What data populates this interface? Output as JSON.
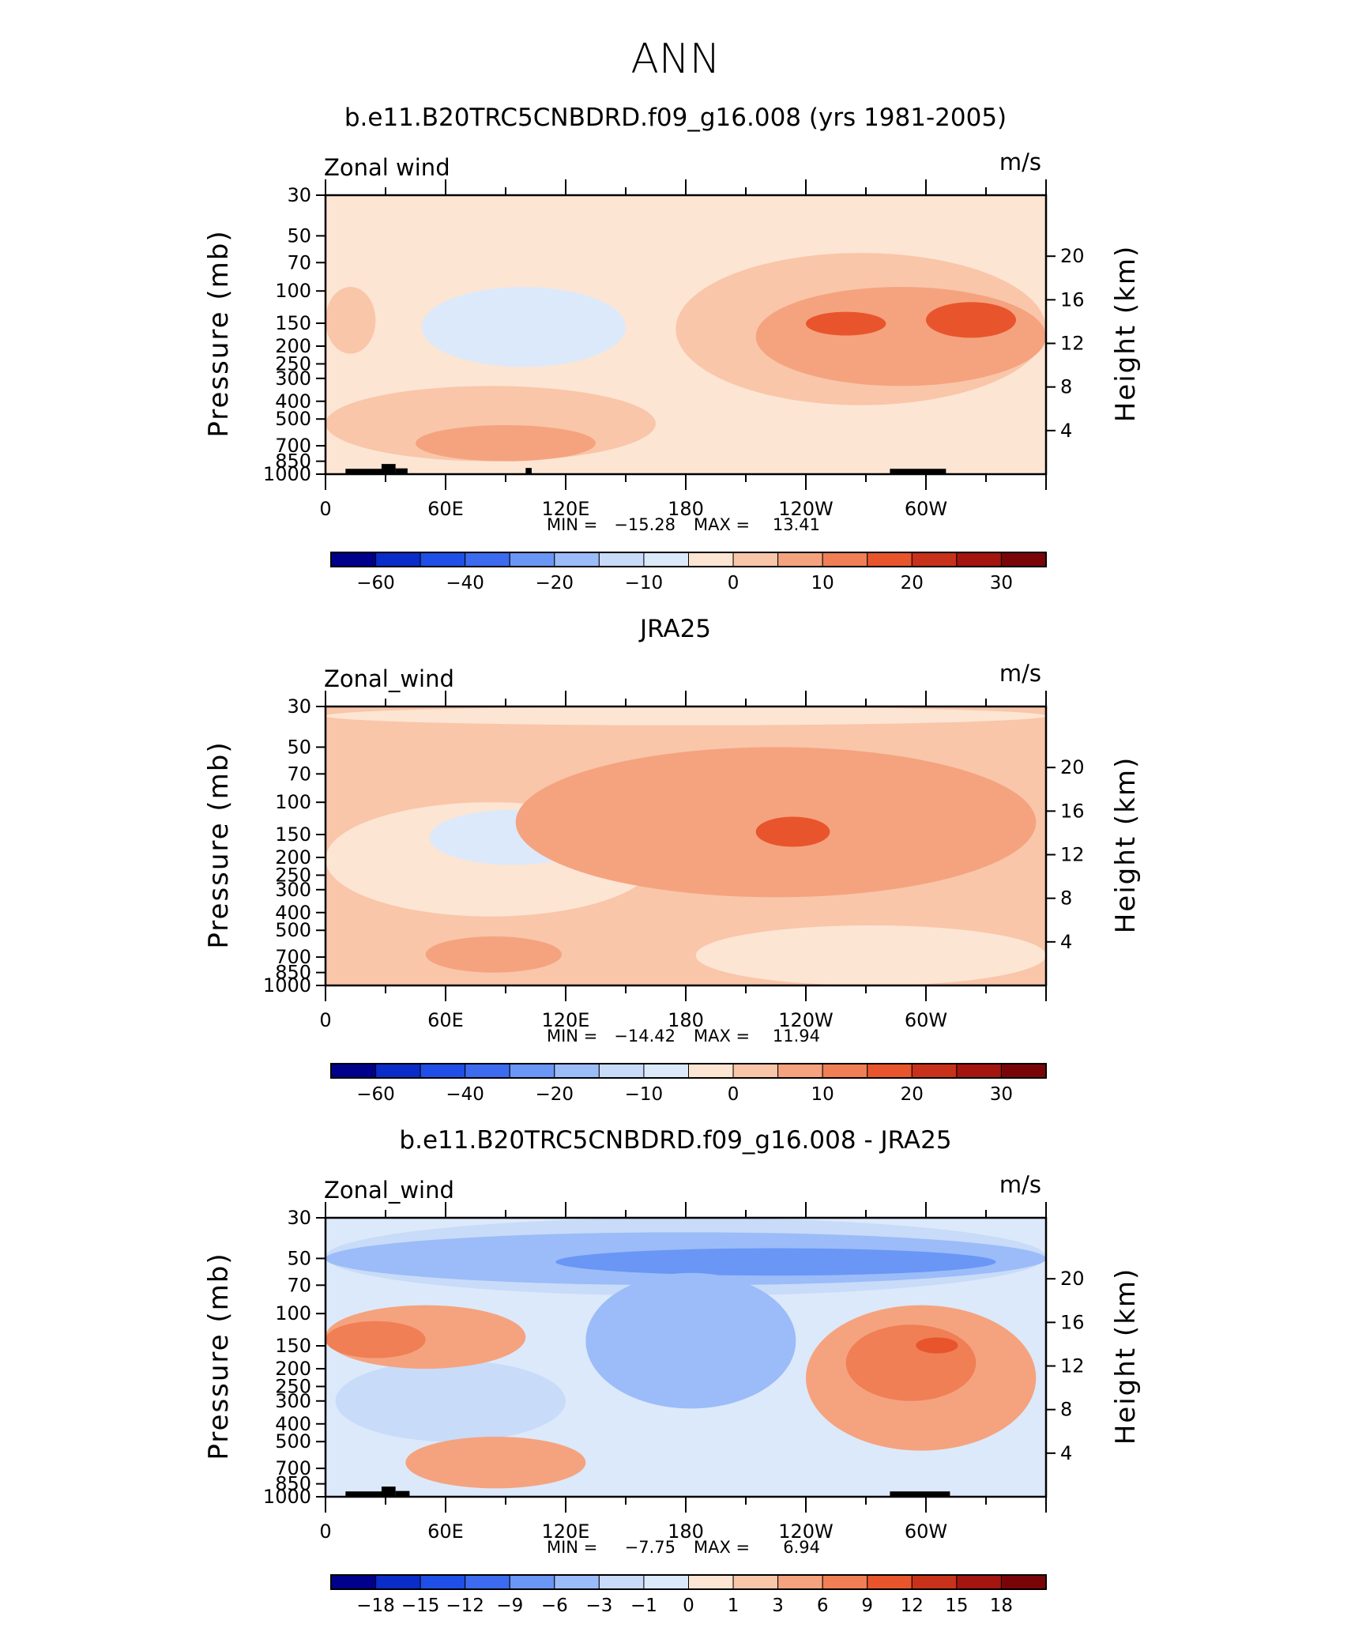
{
  "figure": {
    "title": "ANN"
  },
  "colors": {
    "scale": [
      "#00008b",
      "#0a2cc8",
      "#1f4fe6",
      "#3c6bf0",
      "#6a96f5",
      "#9bbcf8",
      "#c8dbf8",
      "#dce9fa",
      "#fde5d3",
      "#f9c6aa",
      "#f5a37f",
      "#f07f55",
      "#e8552c",
      "#c8321a",
      "#a3150e",
      "#7a0508"
    ]
  },
  "chart_data": [
    {
      "type": "heatmap",
      "title": "b.e11.B20TRC5CNBDRD.f09_g16.008 (yrs 1981-2005)",
      "variable": "Zonal wind",
      "units": "m/s",
      "xlabel": "",
      "ylabel": "Pressure (mb)",
      "ylabel_right": "Height (km)",
      "xlim": [
        0,
        360
      ],
      "x_ticks": [
        "0",
        "60E",
        "120E",
        "180",
        "120W",
        "60W"
      ],
      "x_tick_values": [
        0,
        60,
        120,
        180,
        240,
        300
      ],
      "y_ticks": [
        "30",
        "50",
        "70",
        "100",
        "150",
        "200",
        "250",
        "300",
        "400",
        "500",
        "700",
        "850",
        "1000"
      ],
      "y_tick_values": [
        30,
        50,
        70,
        100,
        150,
        200,
        250,
        300,
        400,
        500,
        700,
        850,
        1000
      ],
      "ylim": [
        1000,
        30
      ],
      "height_ticks": [
        "4",
        "8",
        "12",
        "16",
        "20"
      ],
      "height_tick_values": [
        4,
        8,
        12,
        16,
        20
      ],
      "min_label": "MIN =",
      "min_value": "−15.28",
      "max_label": "MAX =",
      "max_value": "13.41",
      "colorbar_labels": [
        "−60",
        "−40",
        "−20",
        "−10",
        "0",
        "10",
        "20",
        "30"
      ],
      "colorbar_label_boxes": [
        1,
        3,
        5,
        7,
        9,
        11,
        13,
        15
      ],
      "background_value": -3,
      "features": [
        {
          "name": "blue-150",
          "value": -9,
          "lon": [
            48,
            150
          ],
          "p": [
            95,
            260
          ]
        },
        {
          "name": "orange-100",
          "value": 3,
          "lon": [
            0,
            25
          ],
          "p": [
            95,
            220
          ]
        },
        {
          "name": "orange-100b",
          "value": 3,
          "lon": [
            175,
            360
          ],
          "p": [
            62,
            420
          ]
        },
        {
          "name": "orange-lower",
          "value": 3,
          "lon": [
            0,
            165
          ],
          "p": [
            330,
            850
          ]
        },
        {
          "name": "orange-low-small",
          "value": 6,
          "lon": [
            45,
            135
          ],
          "p": [
            540,
            850
          ]
        },
        {
          "name": "jet-1",
          "value": 9,
          "lon": [
            215,
            360
          ],
          "p": [
            95,
            330
          ]
        },
        {
          "name": "jet-1b",
          "value": 15,
          "lon": [
            240,
            280
          ],
          "p": [
            130,
            175
          ]
        },
        {
          "name": "jet-1c",
          "value": 15,
          "lon": [
            300,
            345
          ],
          "p": [
            115,
            180
          ]
        }
      ],
      "topography": [
        {
          "lon": [
            10,
            30
          ],
          "p_top": 935
        },
        {
          "lon": [
            28,
            35
          ],
          "p_top": 880
        },
        {
          "lon": [
            35,
            41
          ],
          "p_top": 930
        },
        {
          "lon": [
            100,
            103
          ],
          "p_top": 925
        },
        {
          "lon": [
            282,
            310
          ],
          "p_top": 935
        }
      ]
    },
    {
      "type": "heatmap",
      "title": "JRA25",
      "variable": "Zonal_wind",
      "units": "m/s",
      "xlabel": "",
      "ylabel": "Pressure (mb)",
      "ylabel_right": "Height (km)",
      "xlim": [
        0,
        360
      ],
      "x_ticks": [
        "0",
        "60E",
        "120E",
        "180",
        "120W",
        "60W"
      ],
      "x_tick_values": [
        0,
        60,
        120,
        180,
        240,
        300
      ],
      "y_ticks": [
        "30",
        "50",
        "70",
        "100",
        "150",
        "200",
        "250",
        "300",
        "400",
        "500",
        "700",
        "850",
        "1000"
      ],
      "y_tick_values": [
        30,
        50,
        70,
        100,
        150,
        200,
        250,
        300,
        400,
        500,
        700,
        850,
        1000
      ],
      "ylim": [
        1000,
        30
      ],
      "height_ticks": [
        "4",
        "8",
        "12",
        "16",
        "20"
      ],
      "height_tick_values": [
        4,
        8,
        12,
        16,
        20
      ],
      "min_label": "MIN =",
      "min_value": "−14.42",
      "max_label": "MAX =",
      "max_value": "11.94",
      "colorbar_labels": [
        "−60",
        "−40",
        "−20",
        "−10",
        "0",
        "10",
        "20",
        "30"
      ],
      "colorbar_label_boxes": [
        1,
        3,
        5,
        7,
        9,
        11,
        13,
        15
      ],
      "background_value": 3,
      "features": [
        {
          "name": "blue-top",
          "value": -3,
          "lon": [
            0,
            360
          ],
          "p": [
            30,
            38
          ]
        },
        {
          "name": "blue-mid-west",
          "value": -3,
          "lon": [
            0,
            165
          ],
          "p": [
            100,
            420
          ]
        },
        {
          "name": "blue-150",
          "value": -9,
          "lon": [
            52,
            135
          ],
          "p": [
            110,
            220
          ]
        },
        {
          "name": "blue-low-east",
          "value": -3,
          "lon": [
            185,
            360
          ],
          "p": [
            470,
            1000
          ]
        },
        {
          "name": "orange-jet",
          "value": 6,
          "lon": [
            95,
            355
          ],
          "p": [
            50,
            330
          ]
        },
        {
          "name": "jet-a",
          "value": 9,
          "lon": [
            195,
            275
          ],
          "p": [
            90,
            240
          ]
        },
        {
          "name": "jet-a-core",
          "value": 15,
          "lon": [
            215,
            252
          ],
          "p": [
            120,
            175
          ]
        },
        {
          "name": "jet-b",
          "value": 9,
          "lon": [
            310,
            348
          ],
          "p": [
            90,
            200
          ]
        },
        {
          "name": "orange-low",
          "value": 6,
          "lon": [
            50,
            118
          ],
          "p": [
            540,
            850
          ]
        }
      ],
      "topography": []
    },
    {
      "type": "heatmap",
      "title": "b.e11.B20TRC5CNBDRD.f09_g16.008 - JRA25",
      "variable": "Zonal_wind",
      "units": "m/s",
      "xlabel": "",
      "ylabel": "Pressure (mb)",
      "ylabel_right": "Height (km)",
      "xlim": [
        0,
        360
      ],
      "x_ticks": [
        "0",
        "60E",
        "120E",
        "180",
        "120W",
        "60W"
      ],
      "x_tick_values": [
        0,
        60,
        120,
        180,
        240,
        300
      ],
      "y_ticks": [
        "30",
        "50",
        "70",
        "100",
        "150",
        "200",
        "250",
        "300",
        "400",
        "500",
        "700",
        "850",
        "1000"
      ],
      "y_tick_values": [
        30,
        50,
        70,
        100,
        150,
        200,
        250,
        300,
        400,
        500,
        700,
        850,
        1000
      ],
      "ylim": [
        1000,
        30
      ],
      "height_ticks": [
        "4",
        "8",
        "12",
        "16",
        "20"
      ],
      "height_tick_values": [
        4,
        8,
        12,
        16,
        20
      ],
      "min_label": "MIN =",
      "min_value": "−7.75",
      "max_label": "MAX =",
      "max_value": "6.94",
      "colorbar_labels": [
        "−18",
        "−15",
        "−12",
        "−9",
        "−6",
        "−3",
        "−1",
        "0",
        "1",
        "3",
        "6",
        "9",
        "12",
        "15",
        "18"
      ],
      "colorbar_label_boxes": [
        1,
        2,
        3,
        4,
        5,
        6,
        7,
        8,
        9,
        10,
        11,
        12,
        13,
        14,
        15
      ],
      "background_value": -1,
      "features": [
        {
          "name": "blue-top",
          "value": -3,
          "lon": [
            0,
            360
          ],
          "p": [
            30,
            80
          ]
        },
        {
          "name": "blue-top-strong",
          "value": -6,
          "lon": [
            0,
            360
          ],
          "p": [
            36,
            70
          ]
        },
        {
          "name": "blue-core",
          "value": -9,
          "lon": [
            115,
            335
          ],
          "p": [
            44,
            62
          ]
        },
        {
          "name": "blue-column",
          "value": -6,
          "lon": [
            130,
            235
          ],
          "p": [
            60,
            330
          ]
        },
        {
          "name": "blue-west",
          "value": -3,
          "lon": [
            5,
            120
          ],
          "p": [
            180,
            500
          ]
        },
        {
          "name": "orange-west",
          "value": 3,
          "lon": [
            0,
            100
          ],
          "p": [
            90,
            200
          ]
        },
        {
          "name": "orange-west-core",
          "value": 6,
          "lon": [
            0,
            50
          ],
          "p": [
            110,
            175
          ]
        },
        {
          "name": "orange-east",
          "value": 3,
          "lon": [
            240,
            355
          ],
          "p": [
            90,
            560
          ]
        },
        {
          "name": "orange-east-core",
          "value": 6,
          "lon": [
            260,
            325
          ],
          "p": [
            115,
            300
          ]
        },
        {
          "name": "orange-east-max",
          "value": 9,
          "lon": [
            295,
            316
          ],
          "p": [
            135,
            165
          ]
        },
        {
          "name": "orange-low",
          "value": 3,
          "lon": [
            40,
            130
          ],
          "p": [
            470,
            900
          ]
        }
      ],
      "topography": [
        {
          "lon": [
            10,
            30
          ],
          "p_top": 935
        },
        {
          "lon": [
            28,
            35
          ],
          "p_top": 880
        },
        {
          "lon": [
            35,
            42
          ],
          "p_top": 930
        },
        {
          "lon": [
            282,
            312
          ],
          "p_top": 935
        }
      ]
    }
  ]
}
